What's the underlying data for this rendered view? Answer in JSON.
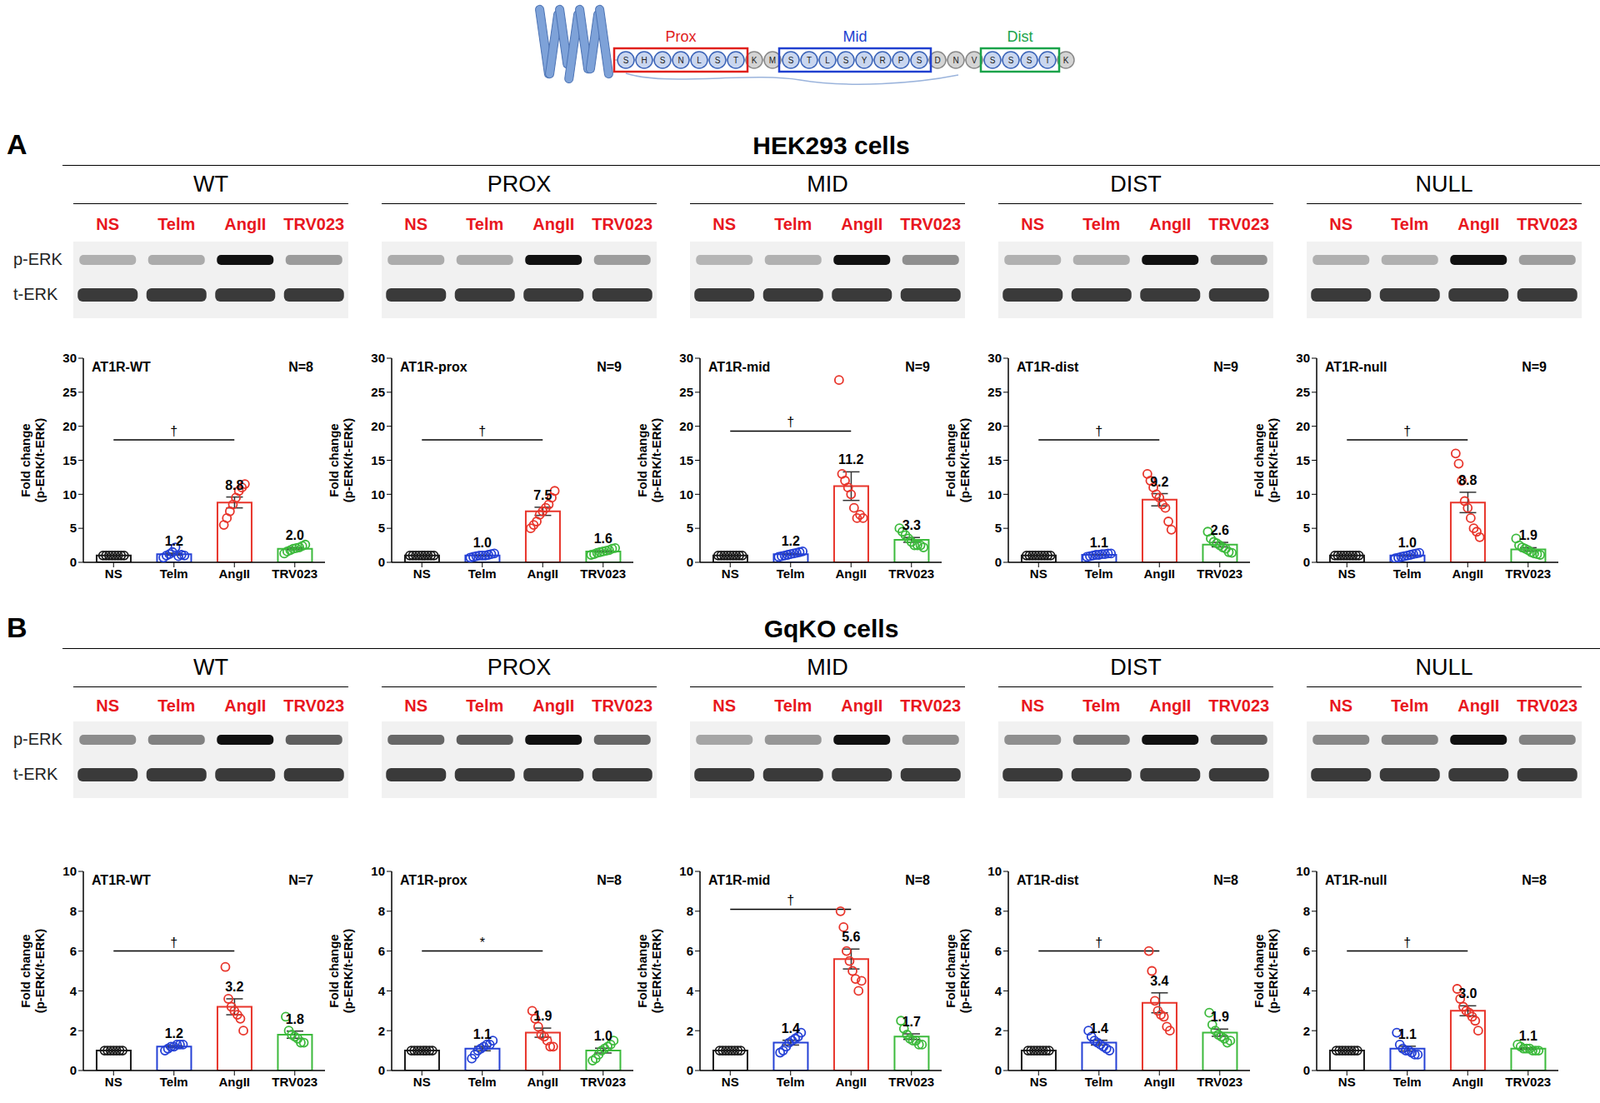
{
  "figure": {
    "diagram": {
      "residues": [
        "S",
        "H",
        "S",
        "N",
        "L",
        "S",
        "T",
        "K",
        "M",
        "S",
        "T",
        "L",
        "S",
        "Y",
        "R",
        "P",
        "S",
        "D",
        "N",
        "V",
        "S",
        "S",
        "S",
        "T",
        "K"
      ],
      "regions": [
        {
          "label": "Prox",
          "start": 0,
          "end": 6,
          "color": "#e0201c"
        },
        {
          "label": "Mid",
          "start": 9,
          "end": 16,
          "color": "#2040d0"
        },
        {
          "label": "Dist",
          "start": 20,
          "end": 23,
          "color": "#1aa34a"
        }
      ]
    },
    "panels": [
      {
        "letter": "A",
        "title": "HEK293 cells",
        "constructs": [
          "WT",
          "PROX",
          "MID",
          "DIST",
          "NULL"
        ],
        "lanes": [
          "NS",
          "Telm",
          "AngII",
          "TRV023"
        ],
        "blot_rows": [
          "p-ERK",
          "t-ERK"
        ]
      },
      {
        "letter": "B",
        "title": "GqKO cells",
        "constructs": [
          "WT",
          "PROX",
          "MID",
          "DIST",
          "NULL"
        ],
        "lanes": [
          "NS",
          "Telm",
          "AngII",
          "TRV023"
        ],
        "blot_rows": [
          "p-ERK",
          "t-ERK"
        ]
      }
    ]
  },
  "chart_data": [
    {
      "type": "bar",
      "title": "AT1R-WT",
      "annotations": [
        "N=8"
      ],
      "ylabel": "Fold change\n(p-ERK/t-ERK)",
      "categories": [
        "NS",
        "Telm",
        "AngII",
        "TRV023"
      ],
      "values": [
        1.0,
        1.2,
        8.8,
        2.0
      ],
      "errors": [
        0,
        0.15,
        0.8,
        0.15
      ],
      "points": [
        [
          1,
          1,
          1,
          1,
          1,
          1,
          1,
          1
        ],
        [
          0.7,
          1.0,
          1.2,
          1.5,
          2.2,
          0.9,
          1.1,
          1.0
        ],
        [
          5.5,
          6.5,
          7.5,
          8.5,
          9.5,
          10.5,
          11,
          11.5
        ],
        [
          1.3,
          1.6,
          1.8,
          2.0,
          2.1,
          2.2,
          2.4,
          2.6
        ]
      ],
      "colors": [
        "#1a1a1a",
        "#2541d6",
        "#e8352b",
        "#3cba3c"
      ],
      "data_labels": true,
      "value_labels": [
        null,
        "1.2",
        "8.8",
        "2.0"
      ],
      "significance": {
        "from": "NS",
        "to": "AngII",
        "text": "†"
      },
      "ylim": [
        0,
        30
      ],
      "yticks": [
        0,
        5,
        10,
        15,
        20,
        25,
        30
      ]
    },
    {
      "type": "bar",
      "title": "AT1R-prox",
      "annotations": [
        "N=9"
      ],
      "ylabel": "Fold change\n(p-ERK/t-ERK)",
      "categories": [
        "NS",
        "Telm",
        "AngII",
        "TRV023"
      ],
      "values": [
        1.0,
        1.0,
        7.5,
        1.6
      ],
      "errors": [
        0,
        0.07,
        0.6,
        0.1
      ],
      "points": [
        [
          1,
          1,
          1,
          1,
          1,
          1,
          1,
          1,
          1
        ],
        [
          0.7,
          0.8,
          0.9,
          1,
          1,
          1,
          1.1,
          1.2,
          1.3
        ],
        [
          5,
          5.5,
          6,
          7,
          7.5,
          8,
          8.5,
          9.5,
          10.5
        ],
        [
          1.1,
          1.2,
          1.4,
          1.5,
          1.6,
          1.7,
          1.8,
          2,
          2.1
        ]
      ],
      "colors": [
        "#1a1a1a",
        "#2541d6",
        "#e8352b",
        "#3cba3c"
      ],
      "data_labels": true,
      "value_labels": [
        null,
        "1.0",
        "7.5",
        "1.6"
      ],
      "significance": {
        "from": "NS",
        "to": "AngII",
        "text": "†"
      },
      "ylim": [
        0,
        30
      ],
      "yticks": [
        0,
        5,
        10,
        15,
        20,
        25,
        30
      ]
    },
    {
      "type": "bar",
      "title": "AT1R-mid",
      "annotations": [
        "N=9"
      ],
      "ylabel": "Fold change\n(p-ERK/t-ERK)",
      "categories": [
        "NS",
        "Telm",
        "AngII",
        "TRV023"
      ],
      "values": [
        1.0,
        1.2,
        11.2,
        3.3
      ],
      "errors": [
        0,
        0.1,
        2.1,
        0.35
      ],
      "points": [
        [
          1,
          1,
          1,
          1,
          1,
          1,
          1,
          1,
          1
        ],
        [
          0.8,
          0.9,
          1,
          1.1,
          1.2,
          1.3,
          1.4,
          1.5,
          1.6
        ],
        [
          26.8,
          13,
          12,
          11,
          10,
          8,
          6.5,
          7,
          6.5
        ],
        [
          5,
          4.5,
          4,
          3.5,
          3,
          2.5,
          2.5,
          2.5,
          2.2
        ]
      ],
      "colors": [
        "#1a1a1a",
        "#2541d6",
        "#e8352b",
        "#3cba3c"
      ],
      "data_labels": true,
      "value_labels": [
        null,
        "1.2",
        "11.2",
        "3.3"
      ],
      "significance": {
        "from": "NS",
        "to": "AngII",
        "text": "†"
      },
      "ylim": [
        0,
        30
      ],
      "yticks": [
        0,
        5,
        10,
        15,
        20,
        25,
        30
      ]
    },
    {
      "type": "bar",
      "title": "AT1R-dist",
      "annotations": [
        "N=9"
      ],
      "ylabel": "Fold change\n(p-ERK/t-ERK)",
      "categories": [
        "NS",
        "Telm",
        "AngII",
        "TRV023"
      ],
      "values": [
        1.0,
        1.1,
        9.2,
        2.6
      ],
      "errors": [
        0,
        0.06,
        0.9,
        0.33
      ],
      "points": [
        [
          1,
          1,
          1,
          1,
          1,
          1,
          1,
          1,
          1
        ],
        [
          0.8,
          0.9,
          1,
          1.1,
          1.1,
          1.2,
          1.2,
          1.3,
          1.3
        ],
        [
          13,
          12,
          11,
          10,
          9.5,
          8.5,
          8,
          6,
          4.8
        ],
        [
          4.5,
          3.5,
          3,
          2.8,
          2.5,
          2.2,
          2,
          1.5,
          1.4
        ]
      ],
      "colors": [
        "#1a1a1a",
        "#2541d6",
        "#e8352b",
        "#3cba3c"
      ],
      "data_labels": true,
      "value_labels": [
        null,
        "1.1",
        "9.2",
        "2.6"
      ],
      "significance": {
        "from": "NS",
        "to": "AngII",
        "text": "†"
      },
      "ylim": [
        0,
        30
      ],
      "yticks": [
        0,
        5,
        10,
        15,
        20,
        25,
        30
      ]
    },
    {
      "type": "bar",
      "title": "AT1R-null",
      "annotations": [
        "N=9"
      ],
      "ylabel": "Fold change\n(p-ERK/t-ERK)",
      "categories": [
        "NS",
        "Telm",
        "AngII",
        "TRV023"
      ],
      "values": [
        1.0,
        1.0,
        8.8,
        1.9
      ],
      "errors": [
        0,
        0.09,
        1.5,
        0.25
      ],
      "points": [
        [
          1,
          1,
          1,
          1,
          1,
          1,
          1,
          1,
          1
        ],
        [
          0.6,
          0.7,
          0.8,
          0.9,
          1,
          1.1,
          1.2,
          1.3,
          1.4
        ],
        [
          16,
          14.5,
          12,
          9,
          8,
          6.5,
          5,
          4.5,
          3.7
        ],
        [
          3.5,
          2.5,
          2.2,
          2,
          1.8,
          1.5,
          1.3,
          1.2,
          1.1
        ]
      ],
      "colors": [
        "#1a1a1a",
        "#2541d6",
        "#e8352b",
        "#3cba3c"
      ],
      "data_labels": true,
      "value_labels": [
        null,
        "1.0",
        "8.8",
        "1.9"
      ],
      "significance": {
        "from": "NS",
        "to": "AngII",
        "text": "†"
      },
      "ylim": [
        0,
        30
      ],
      "yticks": [
        0,
        5,
        10,
        15,
        20,
        25,
        30
      ]
    },
    {
      "type": "bar",
      "title": "AT1R-WT",
      "annotations": [
        "N=7"
      ],
      "ylabel": "Fold change\n(p-ERK/t-ERK)",
      "categories": [
        "NS",
        "Telm",
        "AngII",
        "TRV023"
      ],
      "values": [
        1.0,
        1.2,
        3.2,
        1.8
      ],
      "errors": [
        0,
        0.05,
        0.4,
        0.18
      ],
      "points": [
        [
          1,
          1,
          1,
          1,
          1,
          1,
          1
        ],
        [
          1,
          1.1,
          1.2,
          1.2,
          1.3,
          1.3,
          1.3
        ],
        [
          5.2,
          3.6,
          3.2,
          3,
          2.8,
          2.6,
          2
        ],
        [
          2.7,
          2,
          1.8,
          1.7,
          1.6,
          1.4,
          1.4
        ]
      ],
      "colors": [
        "#1a1a1a",
        "#2541d6",
        "#e8352b",
        "#3cba3c"
      ],
      "data_labels": true,
      "value_labels": [
        null,
        "1.2",
        "3.2",
        "1.8"
      ],
      "significance": {
        "from": "NS",
        "to": "AngII",
        "text": "†"
      },
      "ylim": [
        0,
        10
      ],
      "yticks": [
        0,
        2,
        4,
        6,
        8,
        10
      ]
    },
    {
      "type": "bar",
      "title": "AT1R-prox",
      "annotations": [
        "N=8"
      ],
      "ylabel": "Fold change\n(p-ERK/t-ERK)",
      "categories": [
        "NS",
        "Telm",
        "AngII",
        "TRV023"
      ],
      "values": [
        1.0,
        1.1,
        1.9,
        1.0
      ],
      "errors": [
        0,
        0.11,
        0.23,
        0.12
      ],
      "points": [
        [
          1,
          1,
          1,
          1,
          1,
          1,
          1,
          1
        ],
        [
          0.6,
          0.8,
          1,
          1.1,
          1.2,
          1.3,
          1.3,
          1.5
        ],
        [
          3,
          2.6,
          2.2,
          1.8,
          1.7,
          1.5,
          1.2,
          1.2
        ],
        [
          0.5,
          0.6,
          0.8,
          1,
          1.1,
          1.2,
          1.3,
          1.5
        ]
      ],
      "colors": [
        "#1a1a1a",
        "#2541d6",
        "#e8352b",
        "#3cba3c"
      ],
      "data_labels": true,
      "value_labels": [
        null,
        "1.1",
        "1.9",
        "1.0"
      ],
      "significance": {
        "from": "NS",
        "to": "AngII",
        "text": "*"
      },
      "ylim": [
        0,
        10
      ],
      "yticks": [
        0,
        2,
        4,
        6,
        8,
        10
      ]
    },
    {
      "type": "bar",
      "title": "AT1R-mid",
      "annotations": [
        "N=8"
      ],
      "ylabel": "Fold change\n(p-ERK/t-ERK)",
      "categories": [
        "NS",
        "Telm",
        "AngII",
        "TRV023"
      ],
      "values": [
        1.0,
        1.4,
        5.6,
        1.7
      ],
      "errors": [
        0,
        0.12,
        0.5,
        0.14
      ],
      "points": [
        [
          1,
          1,
          1,
          1,
          1,
          1,
          1,
          1
        ],
        [
          0.9,
          1,
          1.2,
          1.4,
          1.5,
          1.6,
          1.7,
          1.9
        ],
        [
          8,
          7.2,
          6,
          5.5,
          5,
          4.6,
          4,
          4.5
        ],
        [
          2.5,
          2.1,
          1.8,
          1.6,
          1.5,
          1.5,
          1.3,
          1.3
        ]
      ],
      "colors": [
        "#1a1a1a",
        "#2541d6",
        "#e8352b",
        "#3cba3c"
      ],
      "data_labels": true,
      "value_labels": [
        null,
        "1.4",
        "5.6",
        "1.7"
      ],
      "significance": {
        "from": "NS",
        "to": "AngII",
        "text": "†"
      },
      "ylim": [
        0,
        10
      ],
      "yticks": [
        0,
        2,
        4,
        6,
        8,
        10
      ]
    },
    {
      "type": "bar",
      "title": "AT1R-dist",
      "annotations": [
        "N=8"
      ],
      "ylabel": "Fold change\n(p-ERK/t-ERK)",
      "categories": [
        "NS",
        "Telm",
        "AngII",
        "TRV023"
      ],
      "values": [
        1.0,
        1.4,
        3.4,
        1.9
      ],
      "errors": [
        0,
        0.12,
        0.5,
        0.18
      ],
      "points": [
        [
          1,
          1,
          1,
          1,
          1,
          1,
          1,
          1
        ],
        [
          2,
          1.7,
          1.5,
          1.4,
          1.3,
          1.2,
          1.1,
          1
        ],
        [
          6,
          5,
          3.5,
          3,
          2.8,
          2.7,
          2.2,
          2
        ],
        [
          2.9,
          2.3,
          2,
          1.8,
          1.7,
          1.6,
          1.4,
          1.5
        ]
      ],
      "colors": [
        "#1a1a1a",
        "#2541d6",
        "#e8352b",
        "#3cba3c"
      ],
      "data_labels": true,
      "value_labels": [
        null,
        "1.4",
        "3.4",
        "1.9"
      ],
      "significance": {
        "from": "NS",
        "to": "AngII",
        "text": "†"
      },
      "ylim": [
        0,
        10
      ],
      "yticks": [
        0,
        2,
        4,
        6,
        8,
        10
      ]
    },
    {
      "type": "bar",
      "title": "AT1R-null",
      "annotations": [
        "N=8"
      ],
      "ylabel": "Fold change\n(p-ERK/t-ERK)",
      "categories": [
        "NS",
        "Telm",
        "AngII",
        "TRV023"
      ],
      "values": [
        1.0,
        1.1,
        3.0,
        1.1
      ],
      "errors": [
        0,
        0.12,
        0.25,
        0.04
      ],
      "points": [
        [
          1,
          1,
          1,
          1,
          1,
          1,
          1,
          1
        ],
        [
          1.9,
          1.3,
          1.1,
          1,
          1,
          0.9,
          0.8,
          0.8
        ],
        [
          4.1,
          3.6,
          3.2,
          3,
          2.9,
          2.7,
          2.5,
          2
        ],
        [
          1.3,
          1.2,
          1.1,
          1.1,
          1.1,
          1,
          1,
          1
        ]
      ],
      "colors": [
        "#1a1a1a",
        "#2541d6",
        "#e8352b",
        "#3cba3c"
      ],
      "data_labels": true,
      "value_labels": [
        null,
        "1.1",
        "3.0",
        "1.1"
      ],
      "significance": {
        "from": "NS",
        "to": "AngII",
        "text": "†"
      },
      "ylim": [
        0,
        10
      ],
      "yticks": [
        0,
        2,
        4,
        6,
        8,
        10
      ]
    }
  ]
}
